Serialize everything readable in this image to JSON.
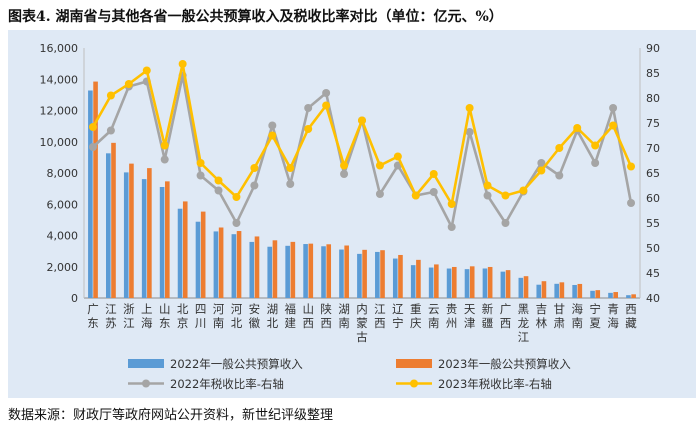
{
  "page": {
    "title": "图表4. 湖南省与其他各省一般公共预算收入及税收比率对比（单位：亿元、%）",
    "source": "数据来源：财政厅等政府网站公开资料，新世纪评级整理"
  },
  "colors": {
    "bar2022": "#5b9bd5",
    "bar2023": "#ed7d31",
    "line2022": "#a5a5a5",
    "line2023": "#ffc000",
    "panel": "#dfe9f5",
    "grid": "#c8c8c8"
  },
  "chart_data": {
    "type": "bar",
    "categories": [
      "广东",
      "江苏",
      "浙江",
      "上海",
      "山东",
      "北京",
      "四川",
      "河南",
      "河北",
      "安徽",
      "湖北",
      "福建",
      "山西",
      "陕西",
      "湖南",
      "内蒙古",
      "江西",
      "辽宁",
      "重庆",
      "云南",
      "贵州",
      "天津",
      "新疆",
      "广西",
      "黑龙江",
      "吉林",
      "甘肃",
      "海南",
      "宁夏",
      "青海",
      "西藏"
    ],
    "y_left": {
      "lim": [
        0,
        16000
      ],
      "ticks": [
        "0",
        "2,000",
        "4,000",
        "6,000",
        "8,000",
        "10,000",
        "12,000",
        "14,000",
        "16,000"
      ]
    },
    "y_right": {
      "lim": [
        40,
        90
      ],
      "ticks": [
        "40",
        "45",
        "50",
        "55",
        "60",
        "65",
        "70",
        "75",
        "80",
        "85",
        "90"
      ],
      "label": ""
    },
    "grid": false,
    "legend_position": "bottom",
    "series": [
      {
        "name": "2022年一般公共预算收入",
        "type": "bar",
        "axis": "left",
        "values": [
          13280,
          9259,
          8039,
          7608,
          7104,
          5714,
          4882,
          4261,
          4084,
          3589,
          3281,
          3340,
          3453,
          3311,
          3101,
          2824,
          2948,
          2525,
          2103,
          1949,
          1886,
          1846,
          1889,
          1687,
          1291,
          851,
          908,
          833,
          461,
          329,
          180
        ]
      },
      {
        "name": "2023年一般公共预算收入",
        "type": "bar",
        "axis": "left",
        "values": [
          13851,
          9930,
          8600,
          8312,
          7465,
          6181,
          5529,
          4512,
          4286,
          3939,
          3692,
          3592,
          3479,
          3437,
          3360,
          3083,
          3059,
          2754,
          2441,
          2149,
          1986,
          2027,
          1986,
          1784,
          1396,
          1075,
          1003,
          900,
          503,
          381,
          236
        ]
      },
      {
        "name": "2022年税收比率-右轴",
        "type": "line",
        "axis": "right",
        "values": [
          70.2,
          73.5,
          82.3,
          83.3,
          67.7,
          84.5,
          64.5,
          61.5,
          55.0,
          62.5,
          74.5,
          62.8,
          78.0,
          81.0,
          64.8,
          75.5,
          60.8,
          66.5,
          60.5,
          61.2,
          54.2,
          73.2,
          60.5,
          55.0,
          61.3,
          67.0,
          64.5,
          73.5,
          67.0,
          78.0,
          59.0
        ]
      },
      {
        "name": "2023年税收比率-右轴",
        "type": "line",
        "axis": "right",
        "values": [
          74.2,
          80.5,
          82.8,
          85.5,
          70.5,
          86.8,
          67.0,
          63.5,
          60.2,
          66.0,
          72.5,
          66.0,
          73.8,
          78.5,
          66.5,
          75.5,
          66.5,
          68.3,
          60.5,
          64.8,
          58.8,
          78.0,
          62.5,
          60.5,
          61.5,
          65.5,
          70.0,
          74.0,
          70.5,
          74.5,
          66.3
        ]
      }
    ]
  }
}
